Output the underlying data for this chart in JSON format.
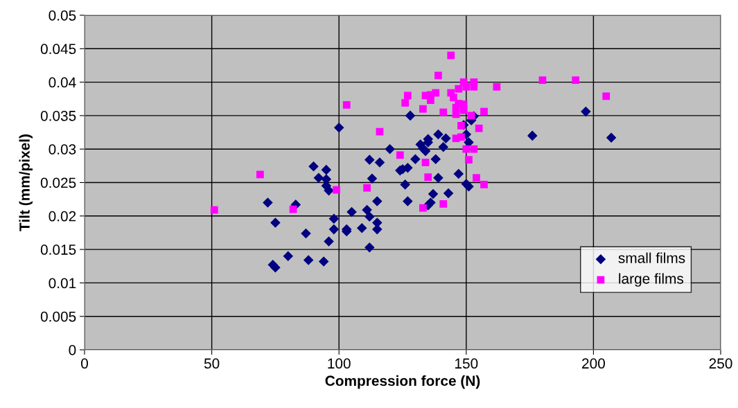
{
  "chart_data": {
    "type": "scatter",
    "xlabel": "Compression force (N)",
    "ylabel": "Tilt (mm/pixel)",
    "xlim": [
      0,
      250
    ],
    "xticks": [
      0,
      50,
      100,
      150,
      200,
      250
    ],
    "ylim": [
      0,
      0.05
    ],
    "yticks": [
      0,
      0.005,
      0.01,
      0.015,
      0.02,
      0.025,
      0.03,
      0.035,
      0.04,
      0.045,
      0.05
    ],
    "grid": true,
    "legend": "bottom right",
    "series": [
      {
        "name": "small films",
        "color": "#000080",
        "marker": "diamond",
        "x": [
          72,
          75,
          74,
          75,
          80,
          83,
          87,
          88,
          90,
          92,
          94,
          95,
          95,
          95,
          96,
          96,
          98,
          98,
          100,
          103,
          103,
          105,
          109,
          111,
          112,
          112,
          112,
          113,
          115,
          115,
          115,
          116,
          120,
          124,
          125,
          126,
          127,
          127,
          128,
          130,
          132,
          133,
          134,
          135,
          135,
          135,
          136,
          137,
          138,
          139,
          139,
          141,
          142,
          143,
          147,
          149,
          150,
          150,
          151,
          151,
          152,
          153,
          176,
          197,
          207
        ],
        "values": [
          0.022,
          0.019,
          0.0127,
          0.0123,
          0.014,
          0.0217,
          0.0174,
          0.0134,
          0.0274,
          0.0257,
          0.0132,
          0.0255,
          0.0269,
          0.0245,
          0.0238,
          0.0162,
          0.0196,
          0.018,
          0.0332,
          0.0177,
          0.018,
          0.0206,
          0.0182,
          0.0209,
          0.0284,
          0.0199,
          0.0153,
          0.0256,
          0.0222,
          0.019,
          0.018,
          0.028,
          0.03,
          0.0268,
          0.027,
          0.0247,
          0.0222,
          0.0272,
          0.035,
          0.0285,
          0.0307,
          0.0301,
          0.0297,
          0.0315,
          0.031,
          0.0216,
          0.022,
          0.0233,
          0.0285,
          0.0322,
          0.0257,
          0.0303,
          0.0316,
          0.0234,
          0.0263,
          0.0336,
          0.0248,
          0.0322,
          0.0244,
          0.031,
          0.0343,
          0.0349,
          0.032,
          0.0356,
          0.0317
        ]
      },
      {
        "name": "large films",
        "color": "#ff00ff",
        "marker": "square",
        "x": [
          51,
          69,
          82,
          99,
          103,
          111,
          116,
          124,
          126,
          127,
          133,
          133,
          134,
          134,
          135,
          136,
          136,
          138,
          139,
          141,
          141,
          144,
          144,
          145,
          146,
          146,
          146,
          147,
          147,
          148,
          148,
          149,
          149,
          149,
          150,
          150,
          151,
          152,
          153,
          153,
          153,
          154,
          155,
          157,
          157,
          162,
          180,
          193,
          205
        ],
        "values": [
          0.0209,
          0.0262,
          0.021,
          0.0239,
          0.0366,
          0.0242,
          0.0326,
          0.0291,
          0.0369,
          0.038,
          0.0212,
          0.036,
          0.028,
          0.038,
          0.0258,
          0.0373,
          0.0381,
          0.0384,
          0.041,
          0.0218,
          0.0355,
          0.044,
          0.0384,
          0.0377,
          0.0352,
          0.0362,
          0.0316,
          0.039,
          0.0368,
          0.0335,
          0.0318,
          0.0358,
          0.0367,
          0.04,
          0.0393,
          0.03,
          0.0284,
          0.035,
          0.0393,
          0.04,
          0.03,
          0.0257,
          0.0331,
          0.0356,
          0.0247,
          0.0393,
          0.0403,
          0.0403,
          0.0379
        ]
      }
    ]
  }
}
